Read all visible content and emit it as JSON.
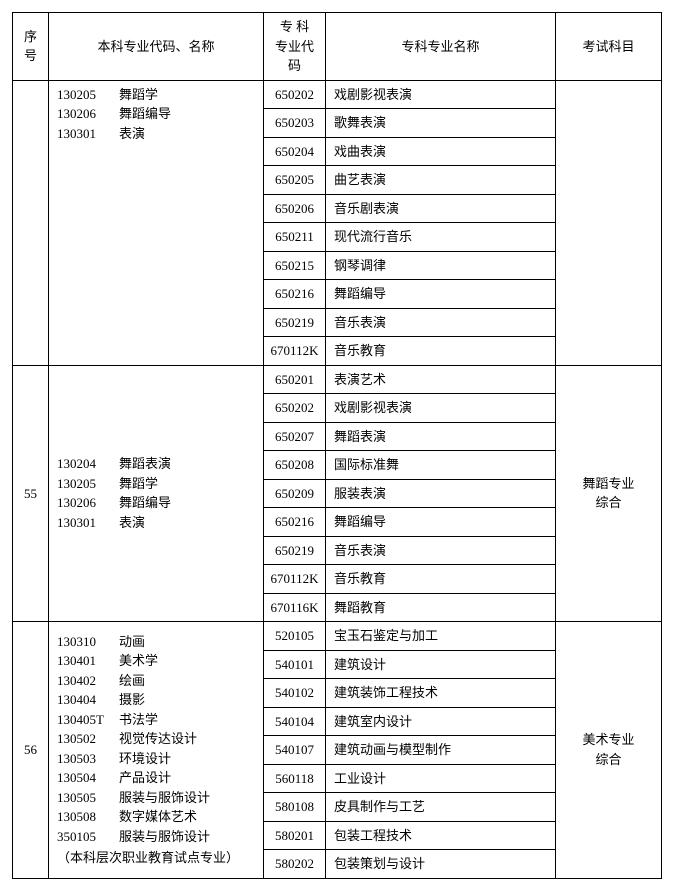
{
  "headers": {
    "seq": "序号",
    "major": "本科专业代码、名称",
    "specCode": "专 科\n专业代码",
    "specName": "专科专业名称",
    "exam": "考试科目"
  },
  "groups": [
    {
      "seq": "",
      "majorLines": [
        {
          "code": "130205",
          "name": "舞蹈学"
        },
        {
          "code": "130206",
          "name": "舞蹈编导"
        },
        {
          "code": "130301",
          "name": "表演"
        }
      ],
      "majorNote": "",
      "majorVAlign": "top",
      "exam": "",
      "rows": [
        {
          "code": "650202",
          "name": "戏剧影视表演"
        },
        {
          "code": "650203",
          "name": "歌舞表演"
        },
        {
          "code": "650204",
          "name": "戏曲表演"
        },
        {
          "code": "650205",
          "name": "曲艺表演"
        },
        {
          "code": "650206",
          "name": "音乐剧表演"
        },
        {
          "code": "650211",
          "name": "现代流行音乐"
        },
        {
          "code": "650215",
          "name": "钢琴调律"
        },
        {
          "code": "650216",
          "name": "舞蹈编导"
        },
        {
          "code": "650219",
          "name": "音乐表演"
        },
        {
          "code": "670112K",
          "name": "音乐教育"
        }
      ]
    },
    {
      "seq": "55",
      "majorLines": [
        {
          "code": "130204",
          "name": "舞蹈表演"
        },
        {
          "code": "130205",
          "name": "舞蹈学"
        },
        {
          "code": "130206",
          "name": "舞蹈编导"
        },
        {
          "code": "130301",
          "name": "表演"
        }
      ],
      "majorNote": "",
      "majorVAlign": "middle",
      "exam": "舞蹈专业\n综合",
      "rows": [
        {
          "code": "650201",
          "name": "表演艺术"
        },
        {
          "code": "650202",
          "name": "戏剧影视表演"
        },
        {
          "code": "650207",
          "name": "舞蹈表演"
        },
        {
          "code": "650208",
          "name": "国际标准舞"
        },
        {
          "code": "650209",
          "name": "服装表演"
        },
        {
          "code": "650216",
          "name": "舞蹈编导"
        },
        {
          "code": "650219",
          "name": "音乐表演"
        },
        {
          "code": "670112K",
          "name": "音乐教育"
        },
        {
          "code": "670116K",
          "name": "舞蹈教育"
        }
      ]
    },
    {
      "seq": "56",
      "majorLines": [
        {
          "code": "130310",
          "name": "动画"
        },
        {
          "code": "130401",
          "name": "美术学"
        },
        {
          "code": "130402",
          "name": "绘画"
        },
        {
          "code": "130404",
          "name": "摄影"
        },
        {
          "code": "130405T",
          "name": "书法学"
        },
        {
          "code": "130502",
          "name": "视觉传达设计"
        },
        {
          "code": "130503",
          "name": "环境设计"
        },
        {
          "code": "130504",
          "name": "产品设计"
        },
        {
          "code": "130505",
          "name": "服装与服饰设计"
        },
        {
          "code": "130508",
          "name": "数字媒体艺术"
        },
        {
          "code": "350105",
          "name": "服装与服饰设计"
        }
      ],
      "majorNote": "（本科层次职业教育试点专业）",
      "majorVAlign": "middle",
      "exam": "美术专业\n综合",
      "rows": [
        {
          "code": "520105",
          "name": "宝玉石鉴定与加工"
        },
        {
          "code": "540101",
          "name": "建筑设计"
        },
        {
          "code": "540102",
          "name": "建筑装饰工程技术"
        },
        {
          "code": "540104",
          "name": "建筑室内设计"
        },
        {
          "code": "540107",
          "name": "建筑动画与模型制作"
        },
        {
          "code": "560118",
          "name": "工业设计"
        },
        {
          "code": "580108",
          "name": "皮具制作与工艺"
        },
        {
          "code": "580201",
          "name": "包装工程技术"
        },
        {
          "code": "580202",
          "name": "包装策划与设计"
        }
      ]
    }
  ]
}
